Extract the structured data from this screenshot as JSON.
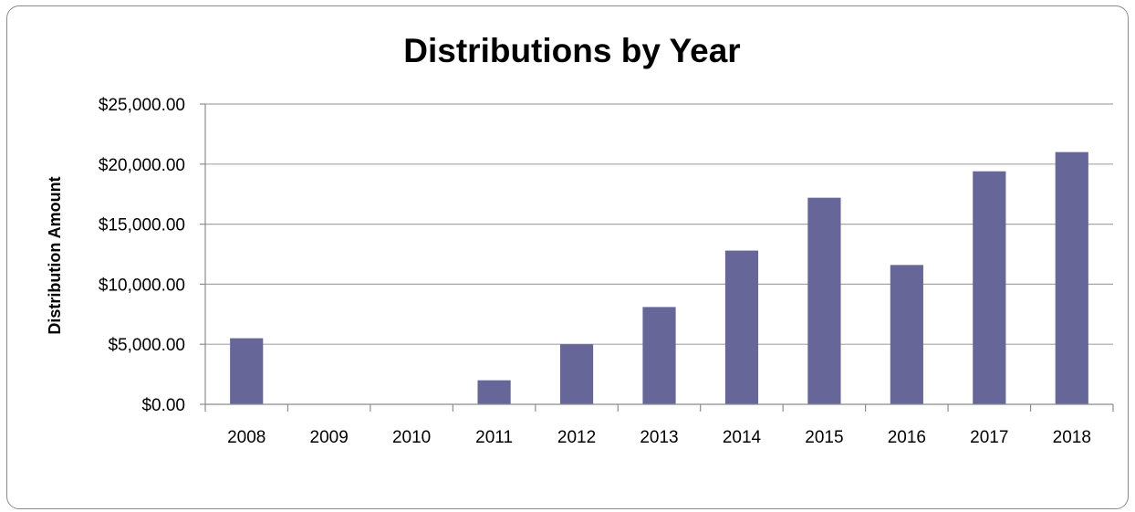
{
  "chart_data": {
    "type": "bar",
    "title": "Distributions by Year",
    "xlabel": "",
    "ylabel": "Distribution Amount",
    "categories": [
      "2008",
      "2009",
      "2010",
      "2011",
      "2012",
      "2013",
      "2014",
      "2015",
      "2016",
      "2017",
      "2018"
    ],
    "values": [
      5500,
      0,
      0,
      2000,
      5000,
      8100,
      12800,
      17200,
      11600,
      19400,
      21000
    ],
    "ylim": [
      0,
      25000
    ],
    "yticks": [
      0,
      5000,
      10000,
      15000,
      20000,
      25000
    ],
    "ytick_labels": [
      "$0.00",
      "$5,000.00",
      "$10,000.00",
      "$15,000.00",
      "$20,000.00",
      "$25,000.00"
    ],
    "grid": true,
    "legend": "none",
    "bar_color": "#666699"
  }
}
